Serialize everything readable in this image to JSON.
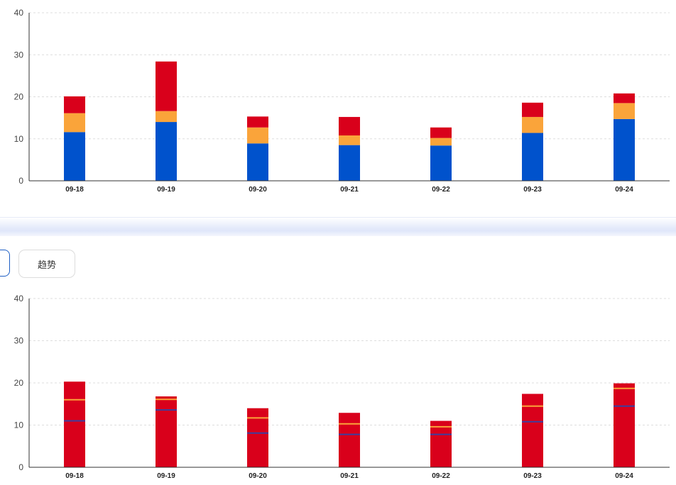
{
  "tabs": [
    {
      "label": ""
    },
    {
      "label": "趋势"
    }
  ],
  "colors": {
    "blue": "#0052cc",
    "orange": "#faa43a",
    "red": "#d9001b",
    "navy": "#3b3fa0",
    "grid": "#dddddd",
    "axis": "#333333"
  },
  "chart_data": [
    {
      "type": "bar",
      "stacked": true,
      "categories": [
        "09-18",
        "09-19",
        "09-20",
        "09-21",
        "09-22",
        "09-23",
        "09-24"
      ],
      "series": [
        {
          "color": "#0052cc",
          "values": [
            11.6,
            14.0,
            8.9,
            8.5,
            8.4,
            11.4,
            14.7
          ]
        },
        {
          "color": "#faa43a",
          "values": [
            4.5,
            2.6,
            3.8,
            2.3,
            1.8,
            3.8,
            3.8
          ]
        },
        {
          "color": "#d9001b",
          "values": [
            4.0,
            11.8,
            2.6,
            4.4,
            2.5,
            3.4,
            2.3
          ]
        }
      ],
      "yticks": [
        "0",
        "10",
        "20",
        "30",
        "40"
      ],
      "ylim": [
        0,
        40
      ],
      "grid": true
    },
    {
      "type": "bar",
      "categories": [
        "09-18",
        "09-19",
        "09-20",
        "09-21",
        "09-22",
        "09-23",
        "09-24"
      ],
      "values": [
        20.3,
        16.8,
        14.0,
        12.9,
        11.0,
        17.4,
        19.9
      ],
      "color": "#d9001b",
      "markers": [
        {
          "color": "#faa43a",
          "values": [
            16.0,
            16.1,
            11.7,
            10.3,
            9.6,
            14.5,
            18.7
          ]
        },
        {
          "color": "#3b3fa0",
          "values": [
            11.0,
            13.6,
            8.1,
            7.8,
            7.8,
            10.8,
            14.5
          ]
        }
      ],
      "yticks": [
        "0",
        "10",
        "20",
        "30",
        "40"
      ],
      "ylim": [
        0,
        40
      ],
      "grid": true
    }
  ]
}
